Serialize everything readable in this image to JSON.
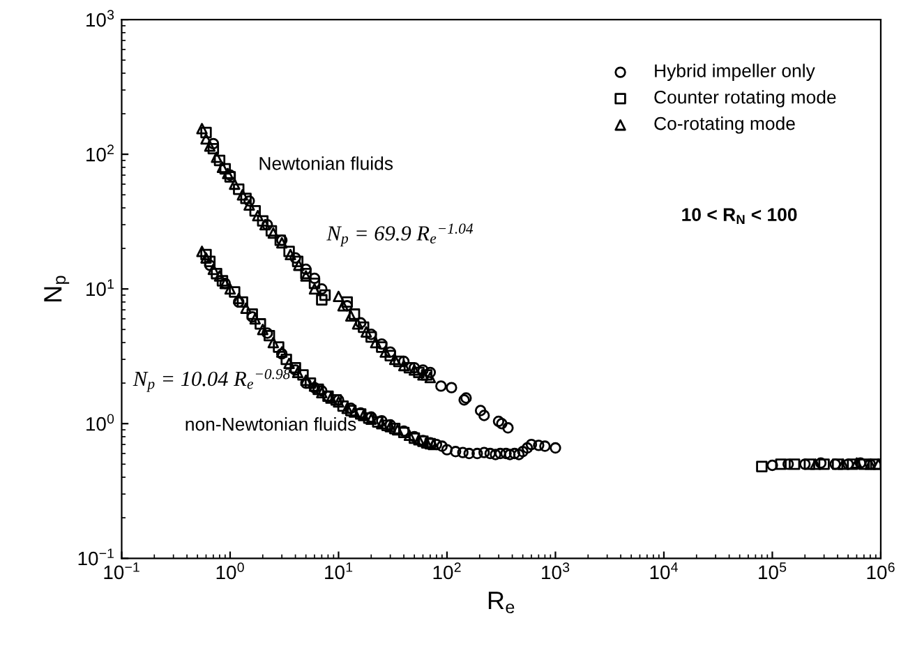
{
  "chart_data": {
    "type": "scatter",
    "xlabel": "R$_{e}$",
    "ylabel": "N$_{p}$",
    "log": "xy",
    "grid": false,
    "legend": "top right",
    "xlim": [
      0.1,
      1000000
    ],
    "ylim": [
      0.1,
      1000
    ],
    "xticks": [
      {
        "value": 0.1,
        "label": "10$^{−1}$"
      },
      {
        "value": 1,
        "label": "10$^{0}$"
      },
      {
        "value": 10,
        "label": "10$^{1}$"
      },
      {
        "value": 100,
        "label": "10$^{2}$"
      },
      {
        "value": 1000,
        "label": "10$^{3}$"
      },
      {
        "value": 10000,
        "label": "10$^{4}$"
      },
      {
        "value": 100000,
        "label": "10$^{5}$"
      },
      {
        "value": 1000000,
        "label": "10$^{6}$"
      }
    ],
    "yticks": [
      {
        "value": 0.1,
        "label": "10$^{−1}$"
      },
      {
        "value": 1,
        "label": "10$^{0}$"
      },
      {
        "value": 10,
        "label": "10$^{1}$"
      },
      {
        "value": 100,
        "label": "10$^{2}$"
      },
      {
        "value": 1000,
        "label": "10$^{3}$"
      }
    ],
    "annotations": [
      "Newtonian fluids",
      "N$_{p}$ = 69.9 R$_{e}$$^{−1.04}$",
      "N$_{p}$ = 10.04 R$_{e}$$^{−0.98}$",
      "non-Newtonian fluids",
      "10 < R$_{N}$ < 100"
    ],
    "series": [
      {
        "name": "Hybrid impeller only",
        "color": "#000000",
        "marker": "circle",
        "x": [
          0.7,
          1.0,
          1.5,
          2.2,
          3,
          4,
          5,
          6,
          7,
          12,
          16,
          20,
          25,
          30,
          40,
          50,
          60,
          70,
          88,
          110,
          144,
          150,
          204,
          220,
          299,
          320,
          365,
          0.65,
          0.9,
          1.2,
          1.6,
          2.2,
          3,
          4,
          5,
          6,
          7,
          8,
          10,
          13,
          16,
          20,
          25,
          30,
          40,
          50,
          60,
          70,
          80,
          90,
          100,
          120,
          140,
          160,
          190,
          220,
          250,
          280,
          310,
          350,
          380,
          420,
          460,
          500,
          550,
          600,
          700,
          800,
          1000,
          100000,
          140000,
          200000,
          280000,
          380000,
          500000,
          650000,
          800000
        ],
        "values": [
          120,
          70,
          45,
          30,
          23,
          17,
          14,
          12,
          10,
          7.5,
          5.6,
          4.6,
          3.9,
          3.4,
          2.9,
          2.6,
          2.5,
          2.4,
          1.9,
          1.85,
          1.5,
          1.55,
          1.25,
          1.15,
          1.04,
          1.0,
          0.93,
          15,
          11,
          8,
          6.2,
          4.7,
          3.3,
          2.5,
          2.0,
          1.85,
          1.75,
          1.6,
          1.5,
          1.3,
          1.2,
          1.12,
          1.05,
          0.98,
          0.88,
          0.8,
          0.75,
          0.72,
          0.7,
          0.68,
          0.64,
          0.62,
          0.61,
          0.6,
          0.6,
          0.61,
          0.6,
          0.59,
          0.6,
          0.6,
          0.59,
          0.6,
          0.59,
          0.62,
          0.66,
          0.7,
          0.69,
          0.68,
          0.66,
          0.49,
          0.5,
          0.5,
          0.51,
          0.5,
          0.5,
          0.51,
          0.5
        ]
      },
      {
        "name": "Counter rotating mode",
        "color": "#000000",
        "marker": "square",
        "x": [
          0.6,
          0.7,
          0.8,
          0.9,
          1.0,
          1.2,
          1.4,
          1.7,
          2,
          2.4,
          2.9,
          3.5,
          4.2,
          5,
          6,
          7,
          7.5,
          12,
          14,
          17,
          20,
          25,
          30,
          36,
          45,
          55,
          65,
          0.6,
          0.65,
          0.75,
          0.85,
          1.1,
          1.3,
          1.6,
          1.9,
          2.3,
          2.8,
          3.3,
          4,
          4.7,
          5.5,
          6.5,
          8,
          9.5,
          11,
          13,
          16,
          19,
          23,
          28,
          33,
          40,
          50,
          60,
          70,
          80000,
          120000,
          160000,
          220000,
          300000,
          400000,
          550000,
          700000,
          900000
        ],
        "values": [
          145,
          110,
          90,
          78,
          68,
          55,
          47,
          38,
          32,
          27,
          23,
          19,
          16,
          13,
          11,
          8.3,
          9,
          8,
          6.5,
          5.2,
          4.4,
          3.7,
          3.2,
          2.9,
          2.6,
          2.4,
          2.3,
          18,
          16,
          13,
          11.5,
          9.5,
          8,
          6.5,
          5.5,
          4.5,
          3.7,
          3.0,
          2.6,
          2.3,
          2.0,
          1.8,
          1.6,
          1.5,
          1.35,
          1.25,
          1.18,
          1.1,
          1.03,
          0.97,
          0.92,
          0.86,
          0.78,
          0.74,
          0.71,
          0.48,
          0.5,
          0.5,
          0.5,
          0.5,
          0.5,
          0.5,
          0.5,
          0.5
        ]
      },
      {
        "name": "Co-rotating mode",
        "color": "#000000",
        "marker": "triangle",
        "x": [
          0.55,
          0.6,
          0.65,
          0.75,
          0.85,
          0.95,
          1.1,
          1.3,
          1.5,
          1.8,
          2.1,
          2.5,
          3,
          3.6,
          4.3,
          5,
          6,
          10,
          11,
          13,
          15,
          18,
          22,
          27,
          33,
          40,
          50,
          60,
          70,
          0.55,
          0.6,
          0.7,
          0.8,
          0.9,
          1.0,
          1.2,
          1.4,
          1.7,
          2,
          2.5,
          3,
          3.5,
          4.2,
          5,
          6,
          7,
          8.5,
          10,
          12,
          14,
          17,
          20,
          25,
          30,
          35,
          45,
          55,
          65,
          75,
          250000,
          450000,
          600000,
          800000,
          950000
        ],
        "values": [
          155,
          130,
          115,
          95,
          80,
          72,
          60,
          50,
          42,
          35,
          30,
          26,
          22,
          18,
          15,
          12.5,
          10,
          8.8,
          7.5,
          6.3,
          5.5,
          4.8,
          4.0,
          3.4,
          3.0,
          2.7,
          2.5,
          2.3,
          2.2,
          19,
          17,
          14,
          12.5,
          11,
          10,
          8.5,
          7.2,
          6,
          5,
          4,
          3.4,
          2.8,
          2.4,
          2.1,
          1.9,
          1.7,
          1.55,
          1.45,
          1.3,
          1.22,
          1.15,
          1.08,
          1.0,
          0.95,
          0.9,
          0.82,
          0.76,
          0.72,
          0.7,
          0.5,
          0.5,
          0.51,
          0.5,
          0.5
        ]
      }
    ]
  }
}
